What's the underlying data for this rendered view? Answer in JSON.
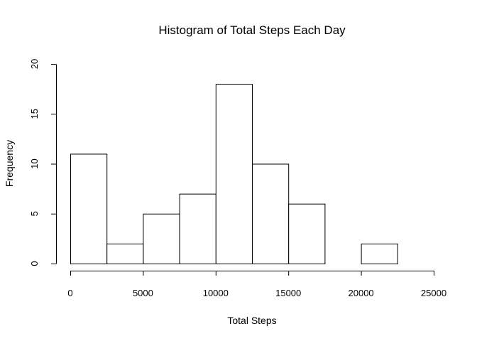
{
  "chart_data": {
    "type": "bar",
    "title": "Histogram of Total Steps Each Day",
    "xlabel": "Total Steps",
    "ylabel": "Frequency",
    "bins": [
      {
        "from": 0,
        "to": 2500,
        "count": 11
      },
      {
        "from": 2500,
        "to": 5000,
        "count": 2
      },
      {
        "from": 5000,
        "to": 7500,
        "count": 5
      },
      {
        "from": 7500,
        "to": 10000,
        "count": 7
      },
      {
        "from": 10000,
        "to": 12500,
        "count": 18
      },
      {
        "from": 12500,
        "to": 15000,
        "count": 10
      },
      {
        "from": 15000,
        "to": 17500,
        "count": 6
      },
      {
        "from": 17500,
        "to": 20000,
        "count": 0
      },
      {
        "from": 20000,
        "to": 22500,
        "count": 2
      },
      {
        "from": 22500,
        "to": 25000,
        "count": 0
      }
    ],
    "xlim": [
      0,
      25000
    ],
    "ylim": [
      0,
      20
    ],
    "x_ticks": [
      "0",
      "5000",
      "10000",
      "15000",
      "20000",
      "25000"
    ],
    "y_ticks": [
      "0",
      "5",
      "10",
      "15",
      "20"
    ],
    "grid": false,
    "legend": "none"
  }
}
